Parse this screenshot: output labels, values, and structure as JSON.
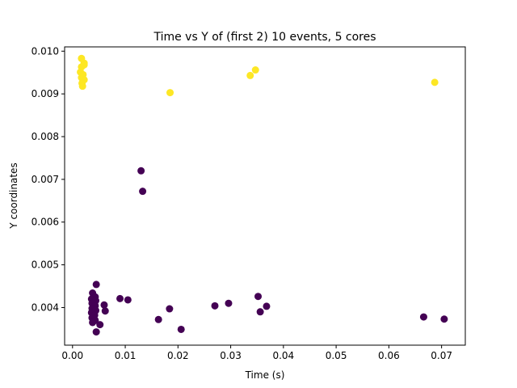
{
  "chart_data": {
    "type": "scatter",
    "title": "Time vs Y of (first 2) 10 events, 5 cores",
    "xlabel": "Time (s)",
    "ylabel": "Y coordinates",
    "xlim": [
      -0.0015,
      0.0745
    ],
    "ylim": [
      0.00312,
      0.0101
    ],
    "xticks": [
      0.0,
      0.01,
      0.02,
      0.03,
      0.04,
      0.05,
      0.06,
      0.07
    ],
    "xtick_labels": [
      "0.00",
      "0.01",
      "0.02",
      "0.03",
      "0.04",
      "0.05",
      "0.06",
      "0.07"
    ],
    "yticks": [
      0.004,
      0.005,
      0.006,
      0.007,
      0.008,
      0.009,
      0.01
    ],
    "ytick_labels": [
      "0.004",
      "0.005",
      "0.006",
      "0.007",
      "0.008",
      "0.009",
      "0.010"
    ],
    "grid": false,
    "legend": false,
    "colors": {
      "group_1": "#fde725",
      "group_2": "#440154"
    },
    "series": [
      {
        "color": "#fde725",
        "points": [
          [
            0.0017,
            0.00983
          ],
          [
            0.0022,
            0.00972
          ],
          [
            0.0017,
            0.00963
          ],
          [
            0.0022,
            0.00968
          ],
          [
            0.0015,
            0.00951
          ],
          [
            0.002,
            0.00945
          ],
          [
            0.0017,
            0.00938
          ],
          [
            0.0022,
            0.00933
          ],
          [
            0.0018,
            0.00925
          ],
          [
            0.0019,
            0.00918
          ],
          [
            0.0185,
            0.00903
          ],
          [
            0.0337,
            0.00943
          ],
          [
            0.0347,
            0.00956
          ],
          [
            0.0687,
            0.00927
          ]
        ]
      },
      {
        "color": "#440154",
        "points": [
          [
            0.013,
            0.0072
          ],
          [
            0.0133,
            0.00672
          ],
          [
            0.0045,
            0.00454
          ],
          [
            0.0038,
            0.00434
          ],
          [
            0.0043,
            0.00425
          ],
          [
            0.0036,
            0.0042
          ],
          [
            0.0044,
            0.00416
          ],
          [
            0.0037,
            0.0041
          ],
          [
            0.0043,
            0.00404
          ],
          [
            0.0037,
            0.00398
          ],
          [
            0.0044,
            0.00393
          ],
          [
            0.0036,
            0.00388
          ],
          [
            0.0042,
            0.00382
          ],
          [
            0.0037,
            0.00376
          ],
          [
            0.0043,
            0.0037
          ],
          [
            0.0038,
            0.00365
          ],
          [
            0.0045,
            0.00343
          ],
          [
            0.0052,
            0.0036
          ],
          [
            0.006,
            0.00406
          ],
          [
            0.0062,
            0.00392
          ],
          [
            0.009,
            0.00421
          ],
          [
            0.0105,
            0.00418
          ],
          [
            0.0163,
            0.00372
          ],
          [
            0.0184,
            0.00397
          ],
          [
            0.0206,
            0.00349
          ],
          [
            0.027,
            0.00404
          ],
          [
            0.0296,
            0.0041
          ],
          [
            0.0352,
            0.00426
          ],
          [
            0.0356,
            0.0039
          ],
          [
            0.0368,
            0.00403
          ],
          [
            0.0666,
            0.00378
          ],
          [
            0.0705,
            0.00373
          ]
        ]
      }
    ]
  }
}
